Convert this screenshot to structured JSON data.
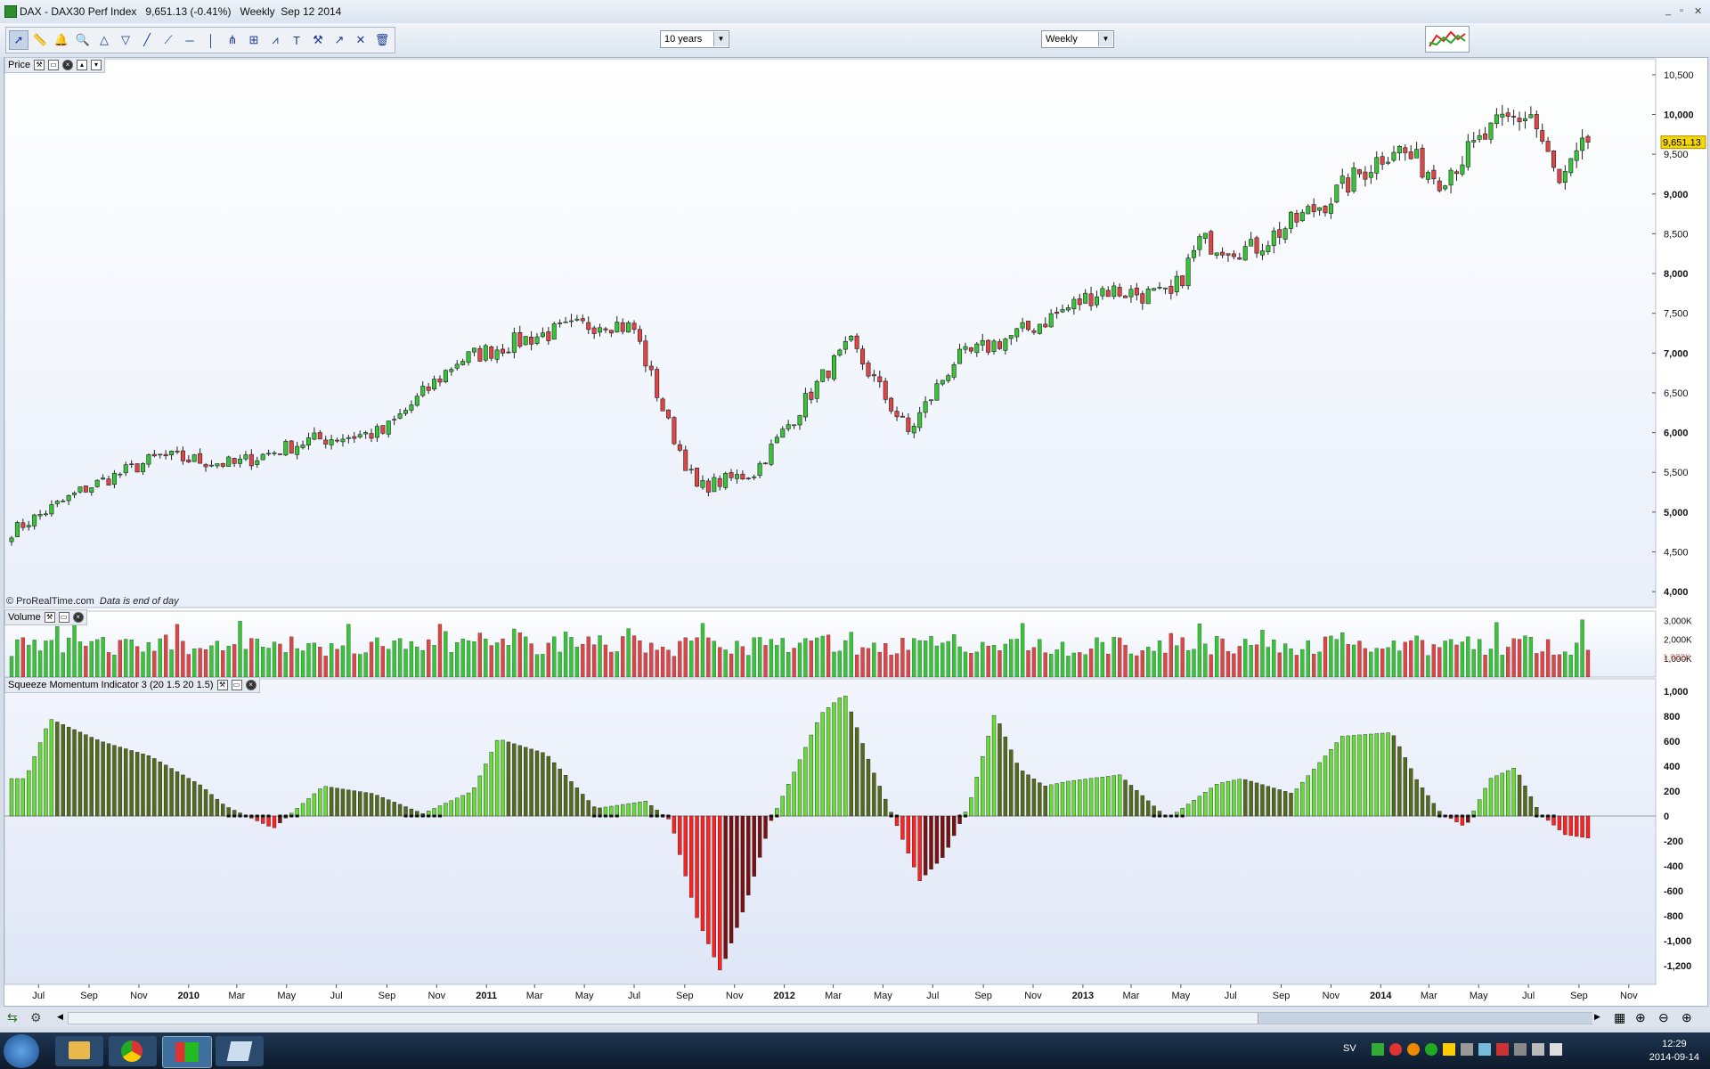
{
  "window": {
    "title": "DAX - DAX30 Perf Index",
    "last_price_label": "9,651.13 (-0.41%)",
    "timeframe": "Weekly",
    "date": "Sep 12 2014",
    "controls": [
      "_",
      "▫",
      "✕"
    ]
  },
  "toolbar": {
    "period_select": "10 years",
    "interval_select": "Weekly",
    "tools": [
      "pointer-icon",
      "ruler-icon",
      "alert-bell-icon",
      "magnifier-icon",
      "fibonacci-icon",
      "channel-icon",
      "trend-line-icon",
      "ray-icon",
      "horizontal-line-icon",
      "vertical-line-icon",
      "andrews-pitchfork-icon",
      "gann-icon",
      "regression-icon",
      "text-icon",
      "hammer-icon",
      "arrow-up-icon",
      "arrow-cross-icon",
      "trash-icon"
    ]
  },
  "price_panel": {
    "label": "Price",
    "credit": "© ProRealTime.com",
    "credit_note": "Data is end of day",
    "current_price_tag": "9,651.13"
  },
  "volume_panel": {
    "label": "Volume",
    "current_volume_tag": "1,082K"
  },
  "indicator_panel": {
    "label": "Squeeze Momentum Indicator 3 (20 1.5 20 1.5)"
  },
  "colors": {
    "up": "#37c437",
    "down": "#e04545",
    "mom_lime": "#66dd33",
    "mom_olive": "#556b1c",
    "mom_red": "#ff2020",
    "mom_maroon": "#7a1010",
    "price_tag_bg": "#f2d70a",
    "vol_tag_color": "#e08080"
  },
  "chart_data": [
    {
      "type": "candlestick",
      "title": "Price",
      "x_ticks": [
        "Jul",
        "Sep",
        "Nov",
        "2010",
        "Mar",
        "May",
        "Jul",
        "Sep",
        "Nov",
        "2011",
        "Mar",
        "May",
        "Jul",
        "Sep",
        "Nov",
        "2012",
        "Mar",
        "May",
        "Jul",
        "Sep",
        "Nov",
        "2013",
        "Mar",
        "May",
        "Jul",
        "Sep",
        "Nov",
        "2014",
        "Mar",
        "May",
        "Jul",
        "Sep",
        "Nov"
      ],
      "y_ticks": [
        4000,
        4500,
        5000,
        5500,
        6000,
        6500,
        7000,
        7500,
        8000,
        8500,
        9000,
        9500,
        10000,
        10500
      ],
      "ylim": [
        3800,
        10700
      ],
      "x": [
        "2009-06-05",
        "2009-08-28",
        "2009-11-27",
        "2010-02-26",
        "2010-05-28",
        "2010-08-27",
        "2010-11-26",
        "2011-02-25",
        "2011-05-27",
        "2011-07-01",
        "2011-08-12",
        "2011-09-16",
        "2011-11-25",
        "2012-02-24",
        "2012-03-23",
        "2012-06-01",
        "2012-07-27",
        "2012-10-26",
        "2013-01-25",
        "2013-04-19",
        "2013-05-24",
        "2013-07-26",
        "2013-10-25",
        "2014-01-17",
        "2014-03-14",
        "2014-05-30",
        "2014-07-04",
        "2014-08-08",
        "2014-09-12"
      ],
      "values": [
        4800,
        5300,
        5700,
        5600,
        5900,
        6000,
        6900,
        7200,
        7400,
        7300,
        6100,
        5300,
        5500,
        6800,
        7100,
        6000,
        6900,
        7300,
        7800,
        7700,
        8400,
        8300,
        8900,
        9600,
        9200,
        9900,
        10000,
        9100,
        9651
      ]
    },
    {
      "type": "bar",
      "title": "Volume",
      "y_ticks": [
        "1,000K",
        "2,000K",
        "3,000K"
      ],
      "current": "1,082K",
      "ylim": [
        0,
        3500
      ],
      "unit": "K"
    },
    {
      "type": "bar",
      "title": "Squeeze Momentum Indicator 3 (20 1.5 20 1.5)",
      "y_ticks": [
        1000,
        800,
        600,
        400,
        200,
        0,
        -200,
        -400,
        -600,
        -800,
        -1000,
        -1200
      ],
      "ylim": [
        -1350,
        1100
      ],
      "x": [
        "2009-06",
        "2009-07",
        "2009-09",
        "2009-11",
        "2010-01",
        "2010-02",
        "2010-04",
        "2010-06",
        "2010-08",
        "2010-10",
        "2010-12",
        "2011-01",
        "2011-03",
        "2011-05",
        "2011-07",
        "2011-08",
        "2011-09",
        "2011-10",
        "2011-11",
        "2011-12",
        "2012-01",
        "2012-02",
        "2012-03",
        "2012-04",
        "2012-05",
        "2012-06",
        "2012-07",
        "2012-08",
        "2012-09",
        "2012-10",
        "2012-11",
        "2012-12",
        "2013-02",
        "2013-04",
        "2013-06",
        "2013-07",
        "2013-09",
        "2013-11",
        "2014-01",
        "2014-02",
        "2014-03",
        "2014-04",
        "2014-05",
        "2014-06",
        "2014-07",
        "2014-08",
        "2014-09"
      ],
      "values": [
        300,
        780,
        600,
        480,
        250,
        80,
        -100,
        240,
        180,
        20,
        200,
        620,
        500,
        60,
        120,
        -40,
        -800,
        -1250,
        -700,
        -50,
        380,
        820,
        980,
        420,
        -30,
        -520,
        -320,
        100,
        830,
        380,
        240,
        280,
        330,
        -20,
        260,
        300,
        180,
        640,
        670,
        280,
        30,
        -90,
        300,
        390,
        20,
        -150,
        -180
      ]
    }
  ],
  "taskbar": {
    "lang": "SV",
    "time": "12:29",
    "date": "2014-09-14"
  }
}
